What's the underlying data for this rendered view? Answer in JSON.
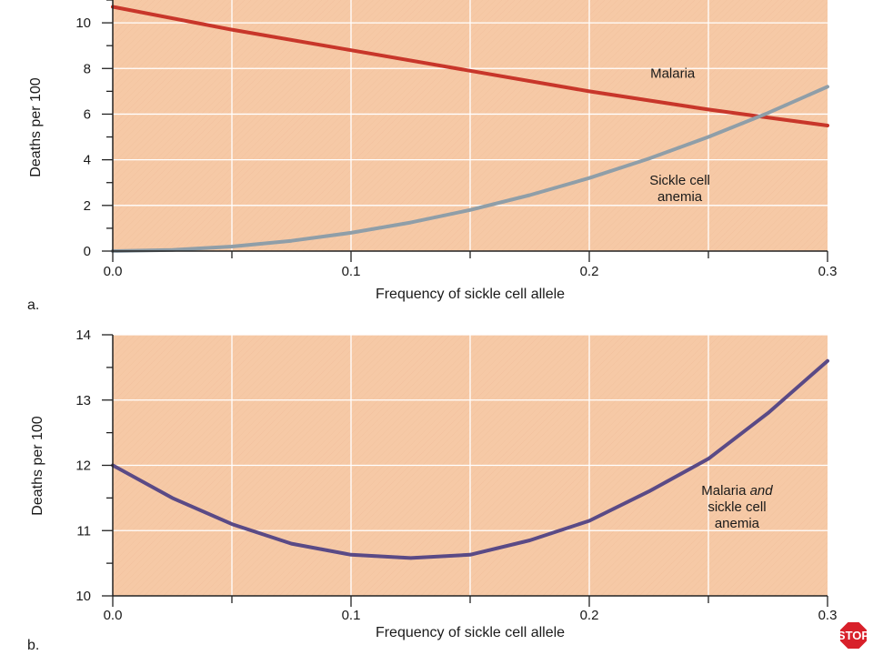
{
  "colors": {
    "plot_bg": "#f6c9a6",
    "grid": "#ffffff",
    "malaria": "#c8362a",
    "sickle": "#8f9ea8",
    "combined": "#5a4a86",
    "stop": "#d8202a"
  },
  "stop_sign": {
    "label": "STOP",
    "icon": "stop-sign-icon"
  },
  "chart_data": [
    {
      "panel": "a.",
      "type": "line",
      "xlabel": "Frequency of sickle cell allele",
      "ylabel": "Deaths per 100",
      "xlim": [
        0,
        0.3
      ],
      "ylim": [
        0,
        11
      ],
      "x_ticks": [
        0.0,
        0.1,
        0.2,
        0.3
      ],
      "x_tick_labels": [
        "0.0",
        "0.1",
        "0.2",
        "0.3"
      ],
      "y_ticks": [
        0,
        2,
        4,
        6,
        8,
        10
      ],
      "y_tick_labels": [
        "0",
        "2",
        "4",
        "6",
        "8",
        "10"
      ],
      "grid": true,
      "series": [
        {
          "name": "Malaria",
          "x": [
            0.0,
            0.05,
            0.1,
            0.15,
            0.2,
            0.25,
            0.3
          ],
          "y": [
            10.7,
            9.7,
            8.8,
            7.9,
            7.0,
            6.2,
            5.5
          ]
        },
        {
          "name": "Sickle cell anemia",
          "x": [
            0.0,
            0.025,
            0.05,
            0.075,
            0.1,
            0.125,
            0.15,
            0.175,
            0.2,
            0.225,
            0.25,
            0.275,
            0.3
          ],
          "y": [
            0.0,
            0.05,
            0.2,
            0.45,
            0.8,
            1.25,
            1.8,
            2.45,
            3.2,
            4.05,
            5.0,
            6.05,
            7.2
          ]
        }
      ],
      "annotations": [
        {
          "lines": [
            "Malaria"
          ],
          "x": 0.235,
          "y": 7.6
        },
        {
          "lines": [
            "Sickle cell",
            "anemia"
          ],
          "x": 0.238,
          "y": 2.9
        }
      ]
    },
    {
      "panel": "b.",
      "type": "line",
      "xlabel": "Frequency of sickle cell allele",
      "ylabel": "Deaths per 100",
      "xlim": [
        0,
        0.3
      ],
      "ylim": [
        10,
        14
      ],
      "x_ticks": [
        0.0,
        0.1,
        0.2,
        0.3
      ],
      "x_tick_labels": [
        "0.0",
        "0.1",
        "0.2",
        "0.3"
      ],
      "y_ticks": [
        10,
        11,
        12,
        13,
        14
      ],
      "y_tick_labels": [
        "10",
        "11",
        "12",
        "13",
        "14"
      ],
      "grid": true,
      "series": [
        {
          "name": "Malaria and sickle cell anemia",
          "x": [
            0.0,
            0.025,
            0.05,
            0.075,
            0.1,
            0.125,
            0.15,
            0.175,
            0.2,
            0.225,
            0.25,
            0.275,
            0.3
          ],
          "y": [
            12.0,
            11.5,
            11.1,
            10.8,
            10.63,
            10.58,
            10.63,
            10.85,
            11.15,
            11.6,
            12.1,
            12.8,
            13.6
          ]
        }
      ],
      "annotations": [
        {
          "lines": [
            "Malaria and",
            "sickle cell",
            "anemia"
          ],
          "italic_word": "and",
          "x": 0.262,
          "y": 11.55
        }
      ]
    }
  ]
}
